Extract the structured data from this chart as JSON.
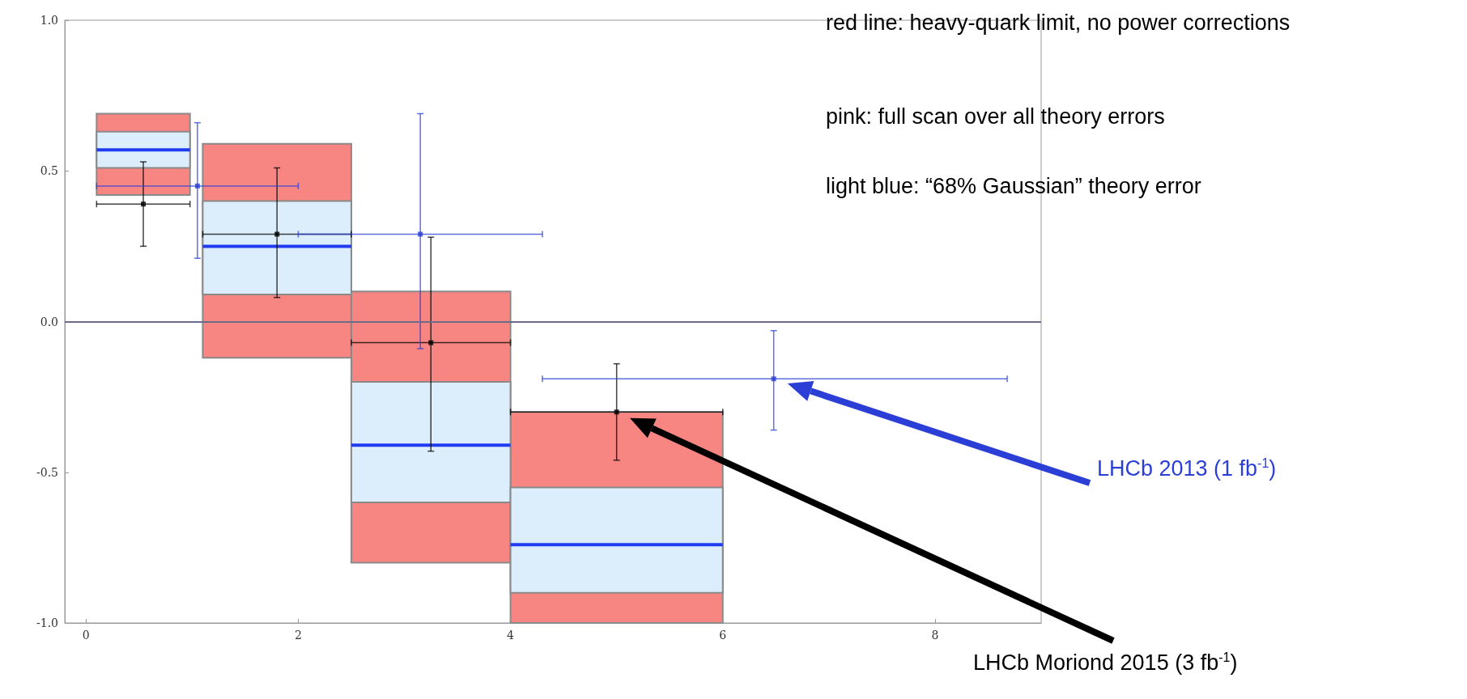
{
  "chart_data": {
    "type": "histogram",
    "xlim": [
      -0.2,
      9
    ],
    "ylim": [
      -1,
      1
    ],
    "xticks": [
      0,
      2,
      4,
      6,
      8
    ],
    "yticks": [
      {
        "value": -1,
        "label": "-1.0"
      },
      {
        "value": -0.5,
        "label": "-0.5"
      },
      {
        "value": 0,
        "label": "0.0"
      },
      {
        "value": 0.5,
        "label": "0.5"
      },
      {
        "value": 1,
        "label": "1.0"
      }
    ],
    "grid": false,
    "legend": false,
    "ref_lines": [
      {
        "axis": "y",
        "value": 0,
        "color": "#6a6a8a"
      }
    ],
    "annotations": [
      "red line: heavy-quark limit, no power corrections",
      "pink: full scan over all theory errors",
      "light blue: “68% Gaussian” theory error"
    ],
    "series": [
      {
        "color": "#f78582",
        "bins": [
          0.1,
          0.98,
          1.1,
          2.5,
          4,
          6
        ],
        "base": [
          0.42,
          null,
          -0.12,
          -0.8,
          -1
        ],
        "values": [
          0.27,
          null,
          0.71,
          0.9,
          0.7
        ]
      },
      {
        "color": "#dceefc",
        "bins": [
          0.1,
          0.98,
          1.1,
          2.5,
          4,
          6
        ],
        "base": [
          0.51,
          null,
          0.09,
          -0.6,
          -0.9
        ],
        "values": [
          0.12,
          null,
          0.31,
          0.4,
          0.35
        ]
      },
      {
        "type": "line",
        "color": "#1f3cf0",
        "x": [
          0.1,
          0.98
        ],
        "values": [
          0.57,
          0.57
        ]
      },
      {
        "type": "line",
        "color": "#1f3cf0",
        "x": [
          1.1,
          2.5
        ],
        "values": [
          0.25,
          0.25
        ]
      },
      {
        "type": "line",
        "color": "#1f3cf0",
        "x": [
          2.5,
          4
        ],
        "values": [
          -0.41,
          -0.41
        ]
      },
      {
        "type": "line",
        "color": "#1f3cf0",
        "x": [
          4,
          6
        ],
        "values": [
          -0.74,
          -0.74
        ]
      },
      {
        "type": "scatter",
        "name": "LHCb Moriond 2015 (3 fb$^{-1}$)",
        "color": "#000000",
        "marker": "square",
        "x": [
          0.54,
          1.8,
          3.25,
          5
        ],
        "values": [
          0.39,
          0.29,
          -0.07,
          -0.3
        ],
        "errors": [
          [
            0.25,
            0.53
          ],
          [
            0.08,
            0.51
          ],
          [
            -0.43,
            0.28
          ],
          [
            -0.46,
            -0.14
          ]
        ],
        "xerrors": [
          [
            0.1,
            0.98
          ],
          [
            1.1,
            2.5
          ],
          [
            2.5,
            4
          ],
          [
            4,
            6
          ]
        ]
      },
      {
        "type": "scatter",
        "name": "LHCb 2013 (1 fb$^{-1}$)",
        "color": "#2b3fd6",
        "marker": "square",
        "x": [
          1.05,
          3.15,
          6.48
        ],
        "values": [
          0.45,
          0.29,
          -0.19
        ],
        "errors": [
          [
            0.21,
            0.66
          ],
          [
            -0.09,
            0.69
          ],
          [
            -0.36,
            -0.03
          ]
        ],
        "xerrors": [
          [
            0.1,
            2
          ],
          [
            2,
            4.3
          ],
          [
            4.3,
            8.68
          ]
        ]
      }
    ]
  }
}
